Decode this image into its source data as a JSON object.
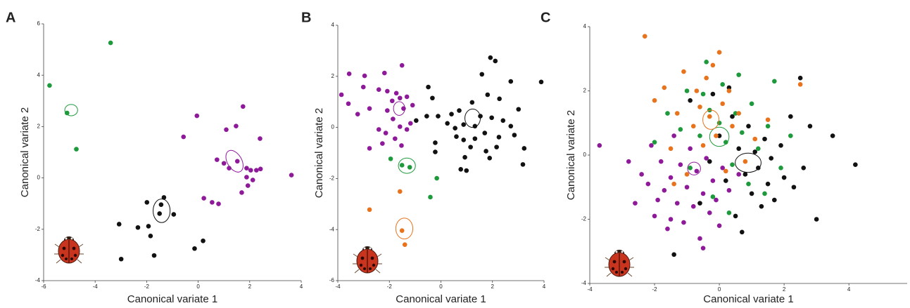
{
  "chart_data": [
    {
      "type": "scatter",
      "panel_label": "A",
      "xlabel": "Canonical variate 1",
      "ylabel": "Canonical variate 2",
      "xlim": [
        -6,
        4
      ],
      "ylim": [
        -4,
        6
      ],
      "xticks": [
        -6,
        -4,
        -2,
        0,
        2,
        4
      ],
      "yticks": [
        -4,
        -2,
        0,
        2,
        4,
        6
      ],
      "series": [
        {
          "color": "#1e9a3c",
          "x": [
            -5.77,
            -3.4,
            -5.09,
            -4.73
          ],
          "y": [
            3.6,
            5.26,
            2.53,
            1.12
          ],
          "ellipse": {
            "cx": -4.93,
            "cy": 2.64,
            "rx": 0.25,
            "ry": 0.22,
            "angle": 0
          }
        },
        {
          "color": "#8e1a9a",
          "x": [
            -0.05,
            -0.57,
            1.74,
            1.09,
            1.47,
            2.4,
            0.73,
            1.0,
            1.2,
            1.52,
            1.88,
            2.04,
            2.26,
            2.42,
            1.88,
            2.12,
            1.93,
            1.69,
            3.62,
            0.22,
            0.54,
            0.79
          ],
          "y": [
            2.42,
            1.6,
            2.78,
            1.88,
            2.02,
            1.53,
            0.71,
            0.57,
            0.38,
            0.65,
            0.38,
            0.3,
            0.3,
            0.35,
            0.03,
            -0.08,
            -0.3,
            -0.57,
            0.11,
            -0.79,
            -0.95,
            -1.01
          ],
          "ellipse": {
            "cx": 1.41,
            "cy": 0.65,
            "rx": 0.28,
            "ry": 0.46,
            "angle": -30
          }
        },
        {
          "color": "#111111",
          "x": [
            -1.99,
            -1.33,
            -1.5,
            -0.95,
            -3.07,
            -2.34,
            -1.93,
            -1.85,
            0.19,
            -0.14,
            -1.71,
            -2.99,
            -1.44
          ],
          "y": [
            -0.95,
            -0.76,
            -1.39,
            -1.42,
            -1.8,
            -1.93,
            -1.88,
            -2.26,
            -2.45,
            -2.75,
            -3.02,
            -3.16,
            -1.04
          ],
          "ellipse": {
            "cx": -1.42,
            "cy": -1.28,
            "rx": 0.33,
            "ry": 0.46,
            "angle": 0
          }
        }
      ]
    },
    {
      "type": "scatter",
      "panel_label": "B",
      "xlabel": "Canonical variate 1",
      "ylabel": "Canonical variate 2",
      "xlim": [
        -4,
        4
      ],
      "ylim": [
        -6,
        4
      ],
      "xticks": [
        -4,
        -2,
        0,
        2,
        4
      ],
      "yticks": [
        -6,
        -4,
        -2,
        0,
        2,
        4
      ],
      "series": [
        {
          "color": "#8e1a9a",
          "x": [
            -3.56,
            -3.86,
            -2.96,
            -2.19,
            -1.51,
            -3.01,
            -2.41,
            -2.08,
            -1.73,
            -1.59,
            -1.32,
            -1.89,
            -3.59,
            -3.23,
            -2.77,
            -2.08,
            -1.45,
            -1.1,
            -1.86,
            -1.59,
            -1.32,
            -2.41,
            -2.14,
            -1.78,
            -2.77,
            -2.27,
            -1.53,
            -1.18
          ],
          "y": [
            2.1,
            1.28,
            2.02,
            2.13,
            2.43,
            1.58,
            1.48,
            1.42,
            1.34,
            1.15,
            1.2,
            1.04,
            0.93,
            0.52,
            0.74,
            0.66,
            0.74,
            0.87,
            0.33,
            0.03,
            -0.08,
            -0.08,
            -0.22,
            -0.44,
            -0.82,
            -0.63,
            -0.71,
            0.16
          ],
          "ellipse": {
            "cx": -1.62,
            "cy": 0.74,
            "rx": 0.22,
            "ry": 0.27,
            "angle": 0
          }
        },
        {
          "color": "#111111",
          "x": [
            -0.49,
            -0.33,
            -0.96,
            -0.55,
            -0.11,
            0.41,
            0.71,
            1.21,
            1.59,
            1.92,
            2.11,
            1.81,
            2.27,
            2.71,
            3.01,
            3.89,
            0.55,
            0.88,
            1.32,
            1.53,
            1.97,
            2.41,
            2.71,
            2.85,
            3.23,
            3.18,
            0.88,
            1.15,
            1.75,
            2.16,
            1.89,
            0.93,
            0.77,
            0.99,
            -0.22,
            -0.22,
            0.25,
            1.7,
            2.25,
            1.32,
            0.6
          ],
          "y": [
            1.58,
            1.15,
            0.27,
            0.44,
            0.44,
            0.52,
            0.66,
            0.98,
            2.08,
            2.73,
            2.6,
            1.28,
            1.12,
            1.8,
            0.71,
            1.78,
            -0.03,
            0.11,
            0.05,
            0.44,
            0.38,
            0.27,
            0.05,
            -0.3,
            -0.82,
            -1.45,
            -0.49,
            -0.77,
            -0.93,
            -0.77,
            -1.2,
            -1.17,
            -1.64,
            -1.69,
            -0.6,
            -0.96,
            0.16,
            -0.22,
            -0.38,
            -0.44,
            -0.36
          ],
          "ellipse": {
            "cx": 1.23,
            "cy": 0.36,
            "rx": 0.3,
            "ry": 0.36,
            "angle": 0
          }
        },
        {
          "color": "#1e9a3c",
          "x": [
            -1.51,
            -1.21,
            -1.95,
            -0.16,
            -0.41
          ],
          "y": [
            -1.48,
            -1.56,
            -1.23,
            -1.99,
            -2.73
          ],
          "ellipse": {
            "cx": -1.32,
            "cy": -1.5,
            "rx": 0.33,
            "ry": 0.3,
            "angle": 0
          }
        },
        {
          "color": "#e8731c",
          "x": [
            -1.59,
            -2.77,
            -1.51,
            -1.4
          ],
          "y": [
            -2.51,
            -3.22,
            -4.04,
            -4.59
          ],
          "ellipse": {
            "cx": -1.42,
            "cy": -3.96,
            "rx": 0.33,
            "ry": 0.41,
            "angle": 0
          }
        }
      ]
    },
    {
      "type": "scatter",
      "panel_label": "C",
      "xlabel": "Canonical variate 1",
      "ylabel": "Canonical variate 2",
      "xlim": [
        -4,
        5.8
      ],
      "ylim": [
        -4,
        4
      ],
      "xticks": [
        -4,
        -2,
        0,
        2,
        4
      ],
      "yticks": [
        -4,
        -2,
        0,
        2,
        4
      ],
      "series": [
        {
          "color": "#8e1a9a",
          "x": [
            -3.7,
            -2.6,
            -2.4,
            -2.2,
            -2.0,
            -1.8,
            -1.7,
            -1.6,
            -1.5,
            -1.4,
            -1.3,
            -1.2,
            -1.1,
            -1.0,
            -0.9,
            -0.8,
            -0.7,
            -0.6,
            -0.5,
            -0.4,
            -0.3,
            -0.2,
            -0.1,
            0.1,
            0.3,
            0.6,
            -2.1,
            -1.9,
            -0.5,
            -2.8,
            -1.5,
            0.0
          ],
          "y": [
            0.3,
            -1.5,
            -0.6,
            -0.9,
            -1.9,
            -0.2,
            -1.1,
            -2.3,
            -0.7,
            0.6,
            -1.5,
            -0.3,
            -2.1,
            -1.0,
            0.2,
            -1.6,
            -0.5,
            -2.6,
            -1.2,
            -0.1,
            -1.8,
            -0.8,
            -1.4,
            -0.4,
            -1.1,
            -0.6,
            0.3,
            -1.4,
            -2.9,
            -0.2,
            -2.0,
            -2.2
          ],
          "ellipse": {
            "cx": -0.78,
            "cy": -0.42,
            "rx": 0.2,
            "ry": 0.2,
            "angle": 0
          }
        },
        {
          "color": "#111111",
          "x": [
            -1.4,
            -0.6,
            -0.3,
            0.0,
            0.2,
            0.4,
            0.5,
            0.6,
            0.7,
            0.8,
            0.9,
            1.0,
            1.1,
            1.2,
            1.3,
            1.4,
            1.5,
            1.6,
            1.7,
            1.9,
            2.0,
            2.2,
            2.3,
            2.5,
            2.6,
            2.8,
            3.0,
            3.5,
            4.2,
            -0.9,
            -0.2,
            0.3
          ],
          "y": [
            -3.1,
            -1.5,
            -0.2,
            0.6,
            -0.8,
            1.2,
            -1.9,
            0.2,
            -2.4,
            -0.6,
            0.9,
            -1.2,
            0.1,
            -0.4,
            -1.6,
            0.5,
            -0.9,
            -0.1,
            -1.4,
            0.3,
            -0.7,
            1.2,
            -1.0,
            2.4,
            -0.4,
            0.9,
            -2.0,
            0.6,
            -0.3,
            1.7,
            1.9,
            2.1
          ],
          "ellipse": {
            "cx": 0.89,
            "cy": -0.24,
            "rx": 0.4,
            "ry": 0.3,
            "angle": 0
          }
        },
        {
          "color": "#1e9a3c",
          "x": [
            -2.0,
            -1.6,
            -1.2,
            -0.9,
            -0.6,
            -0.5,
            -0.3,
            -0.2,
            0.0,
            0.1,
            0.2,
            0.4,
            0.5,
            0.6,
            0.7,
            0.9,
            1.0,
            1.2,
            1.4,
            1.5,
            1.7,
            1.9,
            -0.4,
            0.3,
            -1.0,
            2.2
          ],
          "y": [
            0.4,
            1.3,
            0.8,
            -0.4,
            0.6,
            1.9,
            1.4,
            -1.3,
            1.0,
            2.2,
            0.4,
            -0.3,
            1.3,
            2.5,
            0.7,
            -0.9,
            1.6,
            0.2,
            -1.2,
            0.9,
            2.3,
            -0.4,
            2.9,
            -1.8,
            2.0,
            0.6
          ],
          "ellipse": {
            "cx": 0.0,
            "cy": 0.57,
            "rx": 0.3,
            "ry": 0.3,
            "angle": 0
          }
        },
        {
          "color": "#e8731c",
          "x": [
            -2.3,
            -2.0,
            -1.7,
            -1.5,
            -1.3,
            -1.1,
            -1.0,
            -0.8,
            -0.7,
            -0.6,
            -0.5,
            -0.4,
            -0.3,
            -0.2,
            -0.1,
            0.0,
            0.1,
            0.2,
            0.3,
            0.4,
            0.6,
            0.8,
            1.1,
            1.5,
            2.5,
            -1.4
          ],
          "y": [
            3.7,
            1.7,
            2.1,
            0.2,
            1.3,
            2.6,
            -0.6,
            0.9,
            2.0,
            1.5,
            0.3,
            2.4,
            1.2,
            2.8,
            0.6,
            3.2,
            1.6,
            -0.5,
            2.0,
            0.9,
            1.3,
            -0.2,
            0.5,
            1.1,
            2.2,
            -0.9
          ],
          "ellipse": {
            "cx": -0.26,
            "cy": 1.1,
            "rx": 0.25,
            "ry": 0.3,
            "angle": 0
          }
        }
      ]
    }
  ]
}
